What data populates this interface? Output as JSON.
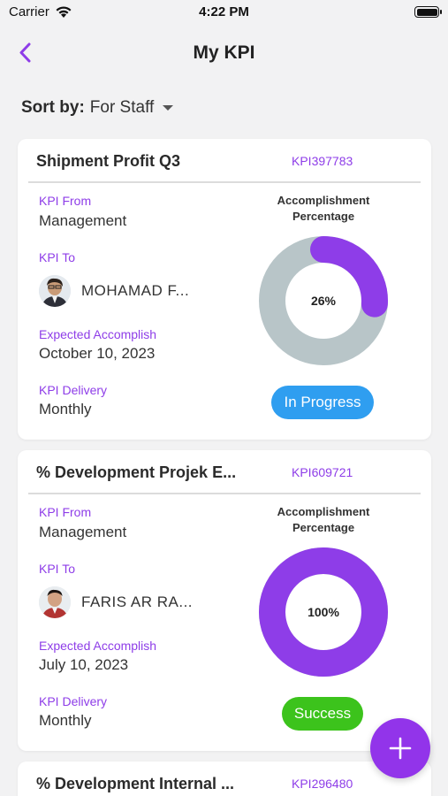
{
  "status_bar": {
    "carrier": "Carrier",
    "time": "4:22 PM",
    "wifi_icon": "wifi-icon",
    "battery_icon": "battery-icon"
  },
  "nav": {
    "title": "My KPI",
    "back_icon": "chevron-left-icon"
  },
  "sort": {
    "label": "Sort by:",
    "value": "For Staff",
    "caret_icon": "caret-down-icon"
  },
  "labels": {
    "kpi_from": "KPI From",
    "kpi_to": "KPI To",
    "expected": "Expected Accomplish",
    "delivery": "KPI Delivery",
    "accomplishment": "Accomplishment Percentage"
  },
  "cards": [
    {
      "title": "Shipment Profit Q3",
      "code": "KPI397783",
      "kpi_from": "Management",
      "assignee": "MOHAMAD F...",
      "expected": "October 10, 2023",
      "delivery": "Monthly",
      "percent": 26,
      "percent_label": "26%",
      "status": "In Progress",
      "status_color": "#2f9ef0"
    },
    {
      "title": "% Development Projek E...",
      "code": "KPI609721",
      "kpi_from": "Management",
      "assignee": "FARIS AR RA...",
      "expected": "July 10, 2023",
      "delivery": "Monthly",
      "percent": 100,
      "percent_label": "100%",
      "status": "Success",
      "status_color": "#3cc31c"
    },
    {
      "title": "% Development Internal ...",
      "code": "KPI296480"
    }
  ],
  "colors": {
    "accent": "#8e3de8",
    "donut_fill": "#8e3de8",
    "donut_track": "#b8c5c8",
    "fab": "#9234ea"
  },
  "fab": {
    "icon": "plus-icon"
  }
}
